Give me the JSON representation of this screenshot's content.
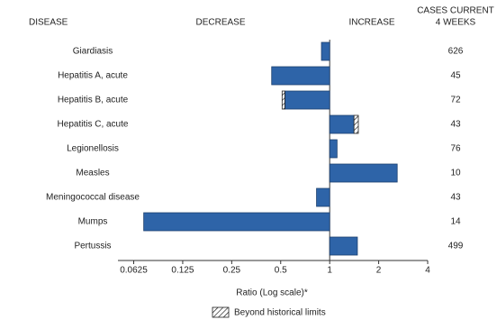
{
  "chart_data": {
    "type": "bar",
    "header_disease": "DISEASE",
    "header_decrease": "DECREASE",
    "header_increase": "INCREASE",
    "header_cases": [
      "CASES CURRENT",
      "4 WEEKS"
    ],
    "categories": [
      "Giardiasis",
      "Hepatitis A, acute",
      "Hepatitis B, acute",
      "Hepatitis C, acute",
      "Legionellosis",
      "Measles",
      "Meningococcal disease",
      "Mumps",
      "Pertussis"
    ],
    "values": [
      0.89,
      0.44,
      0.51,
      1.5,
      1.11,
      2.6,
      0.83,
      0.072,
      1.48
    ],
    "historical_limits": [
      null,
      null,
      0.53,
      1.41,
      null,
      null,
      null,
      null,
      null
    ],
    "cases": [
      626,
      45,
      72,
      43,
      76,
      10,
      43,
      14,
      499
    ],
    "color": "#2e64a8",
    "log_scale": true,
    "xlim": [
      0.05,
      4
    ],
    "xticks": [
      0.0625,
      0.125,
      0.25,
      0.5,
      1,
      2,
      4
    ],
    "x_label": "Ratio (Log scale)*",
    "legend_label": "Beyond historical limits"
  }
}
